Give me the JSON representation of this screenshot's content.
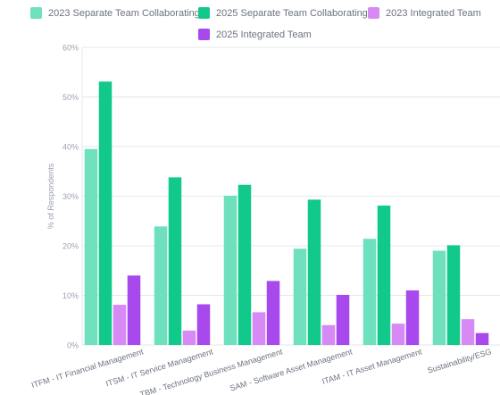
{
  "chart_data": {
    "type": "bar",
    "ylabel": "% of Respondents",
    "xlabel": "",
    "ylim": [
      0,
      60
    ],
    "yticks": [
      0,
      10,
      20,
      30,
      40,
      50,
      60
    ],
    "ytick_labels": [
      "0%",
      "10%",
      "20%",
      "30%",
      "40%",
      "50%",
      "60%"
    ],
    "grid": "horizontal",
    "legend_position": "top",
    "categories": [
      "ITFM - IT Financial Management",
      "ITSM - IT Service Management",
      "TBM - Technology Business Management",
      "SAM - Software Asset Management",
      "ITAM - IT Asset Management",
      "Sustainability/ESG"
    ],
    "series": [
      {
        "name": "2023 Separate Team Collaborating",
        "color": "#6ee0bd",
        "values": [
          39.5,
          23.9,
          30.1,
          19.4,
          21.4,
          19.0
        ]
      },
      {
        "name": "2025 Separate Team Collaborating",
        "color": "#10c98b",
        "values": [
          53.1,
          33.8,
          32.3,
          29.3,
          28.1,
          20.1
        ]
      },
      {
        "name": "2023 Integrated Team",
        "color": "#d78af5",
        "values": [
          8.1,
          2.9,
          6.6,
          4.0,
          4.3,
          5.2
        ]
      },
      {
        "name": "2025 Integrated Team",
        "color": "#a749ec",
        "values": [
          14.0,
          8.2,
          12.9,
          10.1,
          11.0,
          2.4
        ]
      }
    ]
  }
}
